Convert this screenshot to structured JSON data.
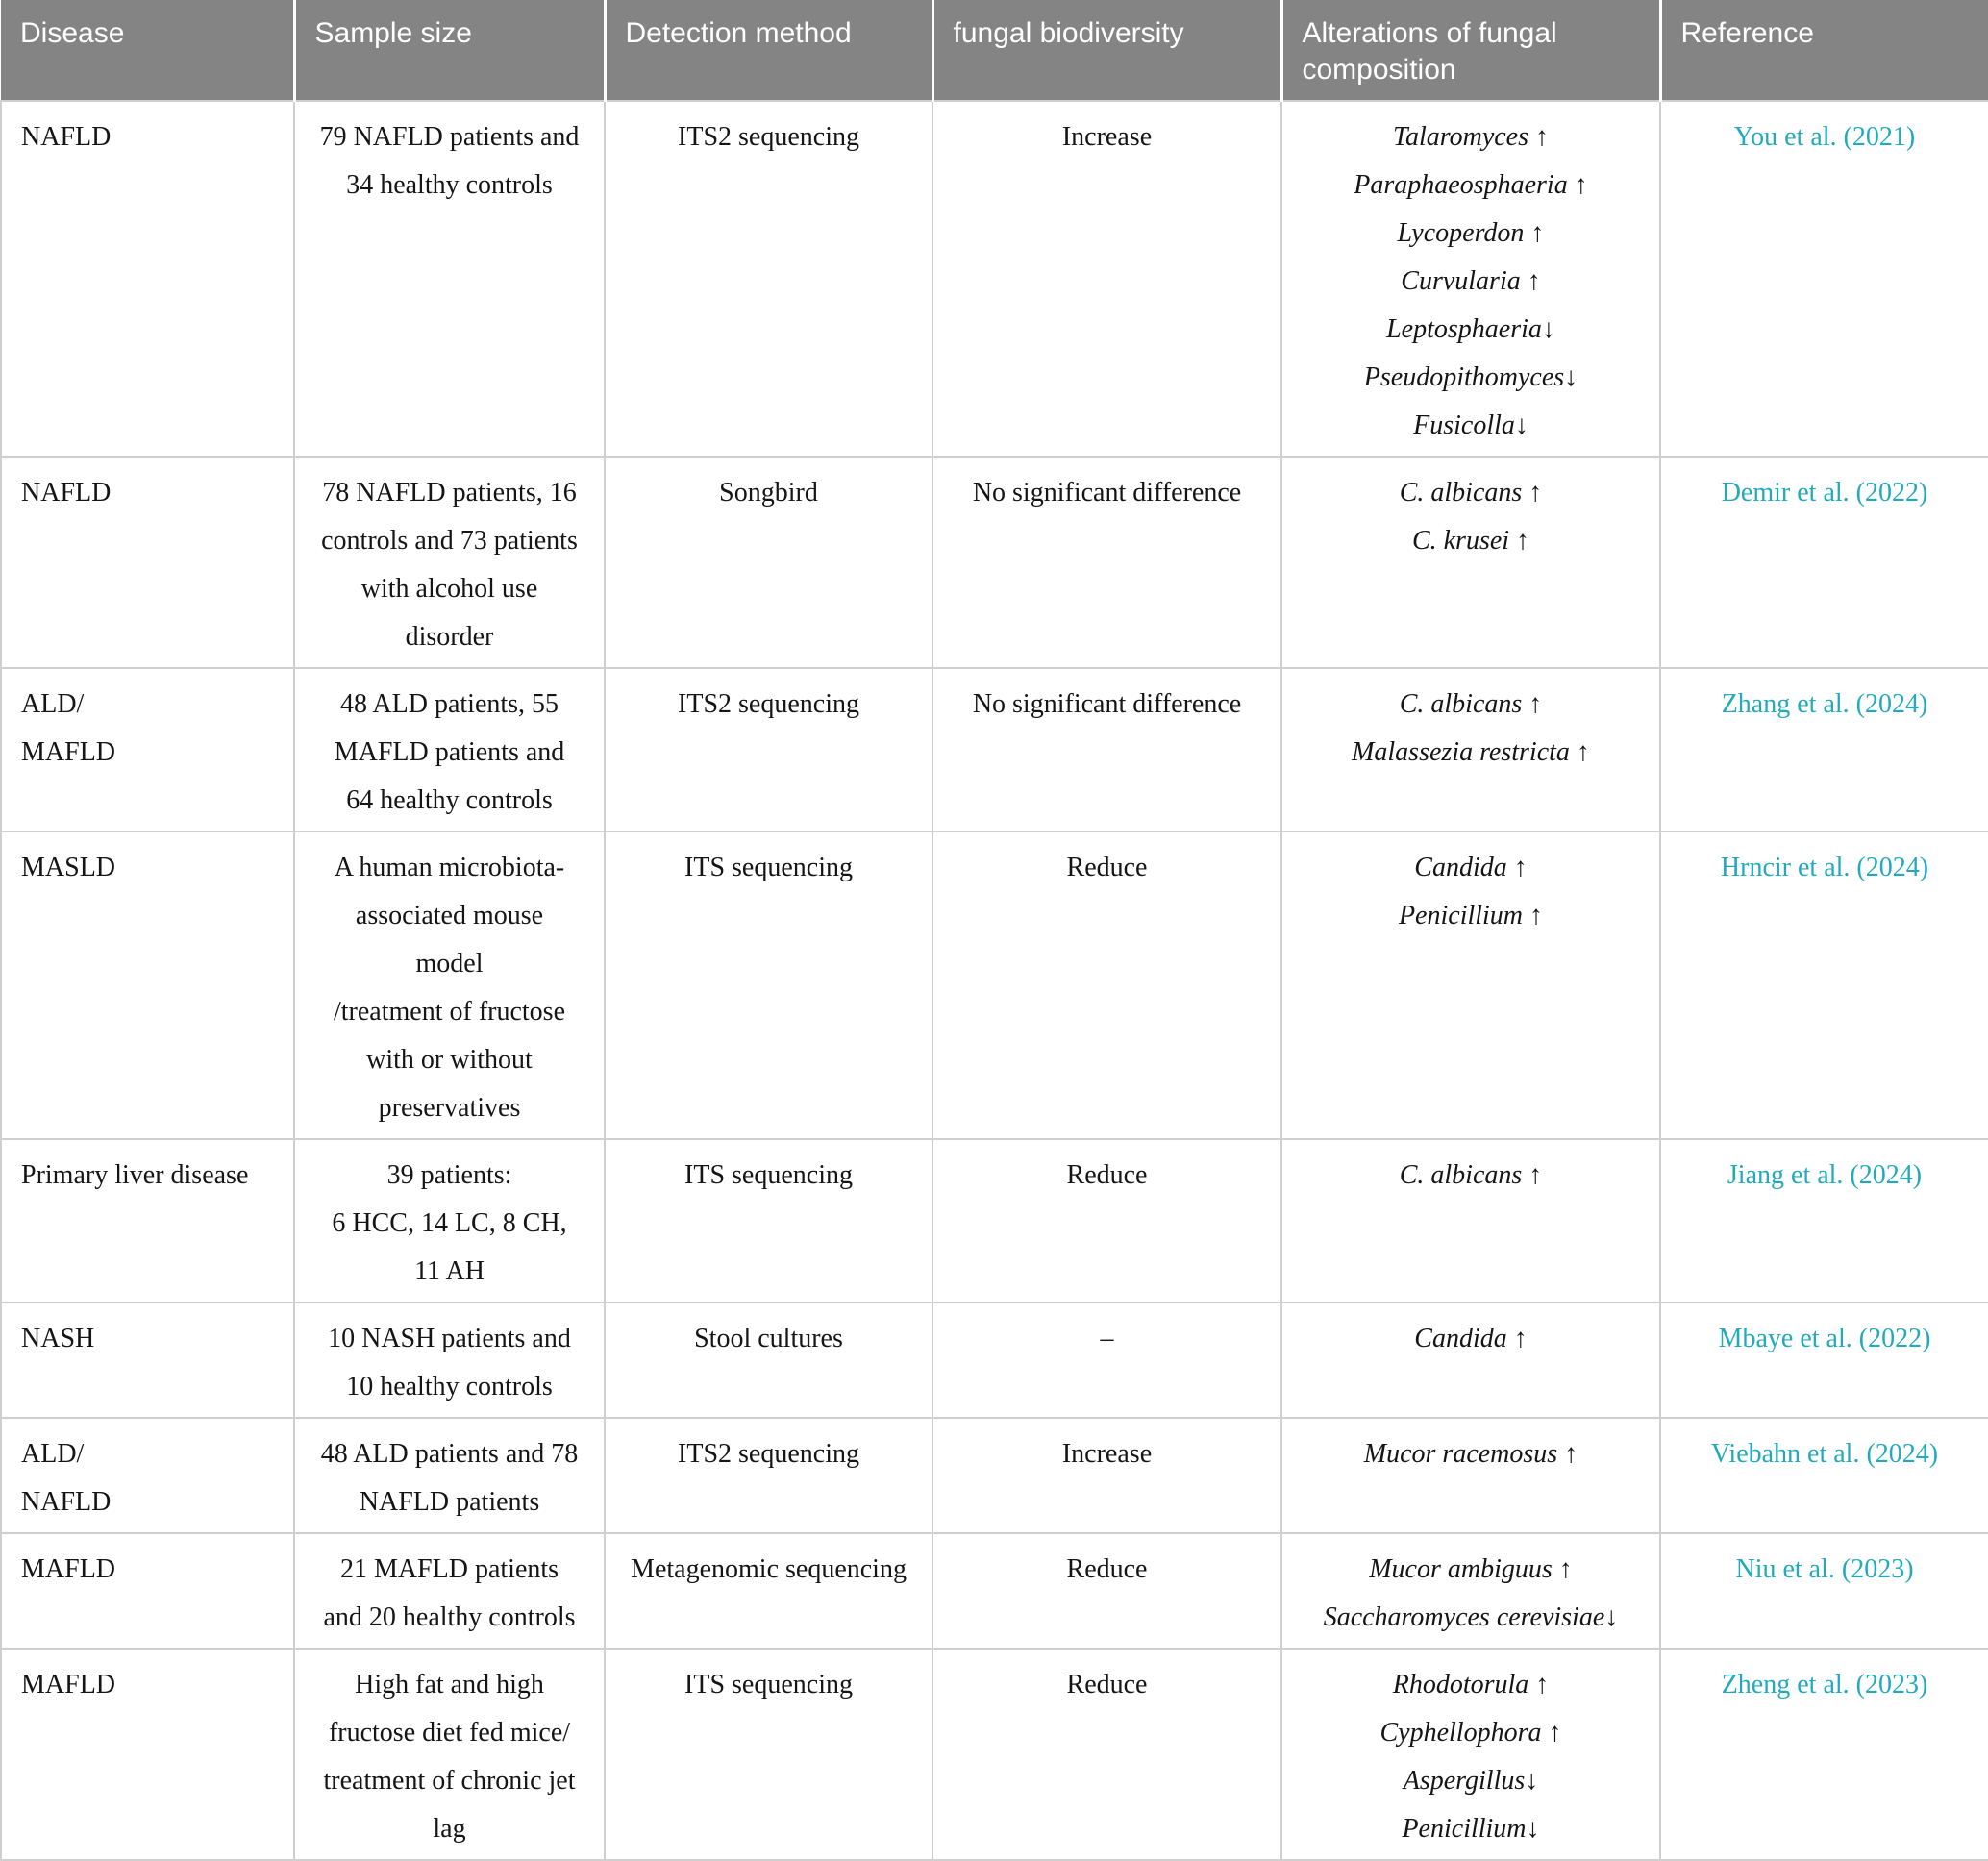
{
  "colors": {
    "header_bg": "#848484",
    "header_text": "#ffffff",
    "link": "#22aabc",
    "border": "#cfcfcf",
    "text": "#151515",
    "background": "#ffffff"
  },
  "table": {
    "columns": [
      "Disease",
      "Sample size",
      "Detection method",
      "fungal biodiversity",
      "Alterations of fungal composition",
      "Reference"
    ],
    "rows": [
      {
        "disease": [
          "NAFLD"
        ],
        "sample_size": [
          "79 NAFLD patients and",
          "34 healthy controls"
        ],
        "detection_method": [
          "ITS2 sequencing"
        ],
        "fungal_biodiversity": [
          "Increase"
        ],
        "alterations": [
          "Talaromyces ↑",
          "Paraphaeosphaeria ↑",
          "Lycoperdon ↑",
          "Curvularia ↑",
          "Leptosphaeria↓",
          "Pseudopithomyces↓",
          "Fusicolla↓"
        ],
        "reference": "You et al. (2021)"
      },
      {
        "disease": [
          "NAFLD"
        ],
        "sample_size": [
          "78 NAFLD patients, 16",
          "controls and 73 patients",
          "with alcohol use",
          "disorder"
        ],
        "detection_method": [
          "Songbird"
        ],
        "fungal_biodiversity": [
          "No significant difference"
        ],
        "alterations": [
          "C. albicans ↑",
          "C. krusei ↑"
        ],
        "reference": "Demir et al. (2022)"
      },
      {
        "disease": [
          "ALD/",
          "MAFLD"
        ],
        "sample_size": [
          "48 ALD patients, 55",
          "MAFLD patients and",
          "64 healthy controls"
        ],
        "detection_method": [
          "ITS2 sequencing"
        ],
        "fungal_biodiversity": [
          "No significant difference"
        ],
        "alterations": [
          "C. albicans ↑",
          "Malassezia restricta ↑"
        ],
        "reference": "Zhang et al. (2024)"
      },
      {
        "disease": [
          "MASLD"
        ],
        "sample_size": [
          "A human microbiota-",
          "associated mouse",
          "model",
          "/treatment of fructose",
          "with or without",
          "preservatives"
        ],
        "detection_method": [
          "ITS sequencing"
        ],
        "fungal_biodiversity": [
          "Reduce"
        ],
        "alterations": [
          "Candida ↑",
          "Penicillium ↑"
        ],
        "reference": "Hrncir et al. (2024)"
      },
      {
        "disease": [
          "Primary liver disease"
        ],
        "sample_size": [
          "39 patients:",
          "6 HCC, 14 LC, 8 CH,",
          "11 AH"
        ],
        "detection_method": [
          "ITS sequencing"
        ],
        "fungal_biodiversity": [
          "Reduce"
        ],
        "alterations": [
          "C. albicans ↑"
        ],
        "reference": "Jiang et al. (2024)"
      },
      {
        "disease": [
          "NASH"
        ],
        "sample_size": [
          "10 NASH patients and",
          "10 healthy controls"
        ],
        "detection_method": [
          "Stool cultures"
        ],
        "fungal_biodiversity": [
          "–"
        ],
        "alterations": [
          "Candida ↑"
        ],
        "reference": "Mbaye et al. (2022)"
      },
      {
        "disease": [
          "ALD/",
          "NAFLD"
        ],
        "sample_size": [
          "48 ALD patients and 78",
          "NAFLD patients"
        ],
        "detection_method": [
          "ITS2 sequencing"
        ],
        "fungal_biodiversity": [
          "Increase"
        ],
        "alterations": [
          "Mucor racemosus ↑"
        ],
        "reference": "Viebahn et al. (2024)"
      },
      {
        "disease": [
          "MAFLD"
        ],
        "sample_size": [
          "21 MAFLD patients",
          "and 20 healthy controls"
        ],
        "detection_method": [
          "Metagenomic sequencing"
        ],
        "fungal_biodiversity": [
          "Reduce"
        ],
        "alterations": [
          "Mucor ambiguus ↑",
          "Saccharomyces cerevisiae↓"
        ],
        "reference": "Niu et al. (2023)"
      },
      {
        "disease": [
          "MAFLD"
        ],
        "sample_size": [
          "High fat and high",
          "fructose diet fed mice/",
          "treatment of chronic jet",
          "lag"
        ],
        "detection_method": [
          "ITS sequencing"
        ],
        "fungal_biodiversity": [
          "Reduce"
        ],
        "alterations": [
          "Rhodotorula ↑",
          "Cyphellophora ↑",
          "Aspergillus↓",
          "Penicillium↓"
        ],
        "reference": "Zheng et al. (2023)"
      }
    ]
  }
}
